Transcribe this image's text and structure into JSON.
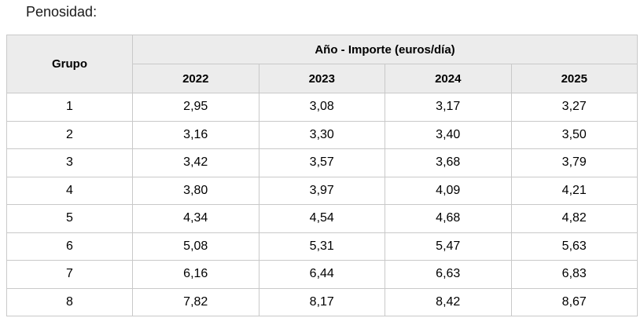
{
  "page": {
    "title": "Penosidad:"
  },
  "colors": {
    "header_background": "#ececec",
    "table_border": "#c9c9c9",
    "text": "#000000",
    "page_background": "#ffffff"
  },
  "table": {
    "corner_header": "Grupo",
    "span_header": "Año - Importe (euros/día)",
    "year_headers": [
      "2022",
      "2023",
      "2024",
      "2025"
    ],
    "rows": [
      {
        "grupo": "1",
        "values": [
          "2,95",
          "3,08",
          "3,17",
          "3,27"
        ]
      },
      {
        "grupo": "2",
        "values": [
          "3,16",
          "3,30",
          "3,40",
          "3,50"
        ]
      },
      {
        "grupo": "3",
        "values": [
          "3,42",
          "3,57",
          "3,68",
          "3,79"
        ]
      },
      {
        "grupo": "4",
        "values": [
          "3,80",
          "3,97",
          "4,09",
          "4,21"
        ]
      },
      {
        "grupo": "5",
        "values": [
          "4,34",
          "4,54",
          "4,68",
          "4,82"
        ]
      },
      {
        "grupo": "6",
        "values": [
          "5,08",
          "5,31",
          "5,47",
          "5,63"
        ]
      },
      {
        "grupo": "7",
        "values": [
          "6,16",
          "6,44",
          "6,63",
          "6,83"
        ]
      },
      {
        "grupo": "8",
        "values": [
          "7,82",
          "8,17",
          "8,42",
          "8,67"
        ]
      }
    ]
  }
}
